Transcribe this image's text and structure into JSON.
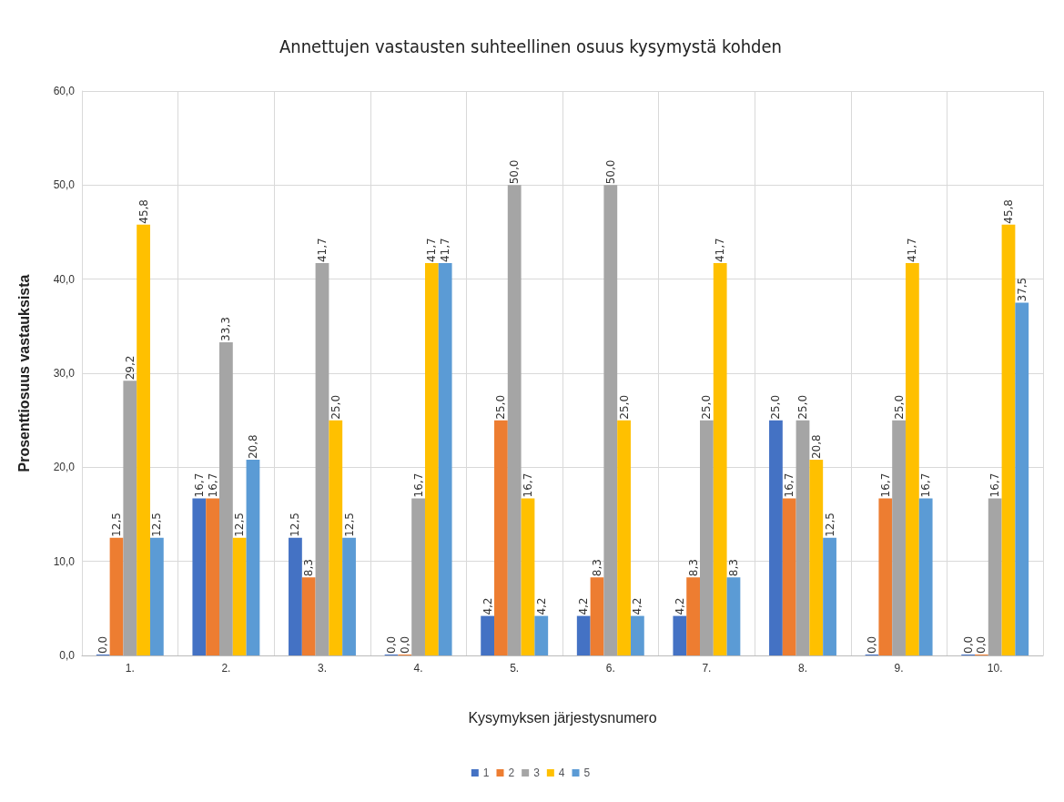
{
  "chart_data": {
    "type": "bar",
    "title": "Annettujen vastausten suhteellinen osuus kysymystä kohden",
    "xlabel": "Kysymyksen järjestysnumero",
    "ylabel": "Prosenttiosuus vastauksista",
    "categories": [
      "1.",
      "2.",
      "3.",
      "4.",
      "5.",
      "6.",
      "7.",
      "8.",
      "9.",
      "10."
    ],
    "series": [
      {
        "name": "1",
        "color": "#4472c4",
        "values": [
          0,
          16.7,
          12.5,
          0,
          4.2,
          4.2,
          4.2,
          25,
          0,
          0
        ],
        "value_labels": [
          "0,0",
          "16,7",
          "12,5",
          "0,0",
          "4,2",
          "4,2",
          "4,2",
          "25,0",
          "0,0",
          "0,0"
        ]
      },
      {
        "name": "2",
        "color": "#ed7d31",
        "values": [
          12.5,
          16.7,
          8.3,
          0,
          25,
          8.3,
          8.3,
          16.7,
          16.7,
          0
        ],
        "value_labels": [
          "12,5",
          "16,7",
          "8,3",
          "0,0",
          "25,0",
          "8,3",
          "8,3",
          "16,7",
          "16,7",
          "0,0"
        ]
      },
      {
        "name": "3",
        "color": "#a5a5a5",
        "values": [
          29.2,
          33.3,
          41.7,
          16.7,
          50,
          50,
          25,
          25,
          25,
          16.7
        ],
        "value_labels": [
          "29,2",
          "33,3",
          "41,7",
          "16,7",
          "50,0",
          "50,0",
          "25,0",
          "25,0",
          "25,0",
          "16,7"
        ]
      },
      {
        "name": "4",
        "color": "#ffc000",
        "values": [
          45.8,
          12.5,
          25,
          41.7,
          16.7,
          25,
          41.7,
          20.8,
          41.7,
          45.8
        ],
        "value_labels": [
          "45,8",
          "12,5",
          "25,0",
          "41,7",
          "16,7",
          "25,0",
          "41,7",
          "20,8",
          "41,7",
          "45,8"
        ]
      },
      {
        "name": "5",
        "color": "#5b9bd5",
        "values": [
          12.5,
          20.8,
          12.5,
          41.7,
          4.2,
          4.2,
          8.3,
          12.5,
          16.7,
          37.5
        ],
        "value_labels": [
          "12,5",
          "20,8",
          "12,5",
          "41,7",
          "4,2",
          "4,2",
          "8,3",
          "12,5",
          "16,7",
          "37,5"
        ]
      }
    ],
    "ylim": [
      0,
      60
    ],
    "yticks": [
      {
        "value": 0,
        "label": "0,0"
      },
      {
        "value": 10,
        "label": "10,0"
      },
      {
        "value": 20,
        "label": "20,0"
      },
      {
        "value": 30,
        "label": "30,0"
      },
      {
        "value": 40,
        "label": "40,0"
      },
      {
        "value": 50,
        "label": "50,0"
      },
      {
        "value": 60,
        "label": "60,0"
      }
    ],
    "grid": true,
    "legend": "bottom"
  }
}
